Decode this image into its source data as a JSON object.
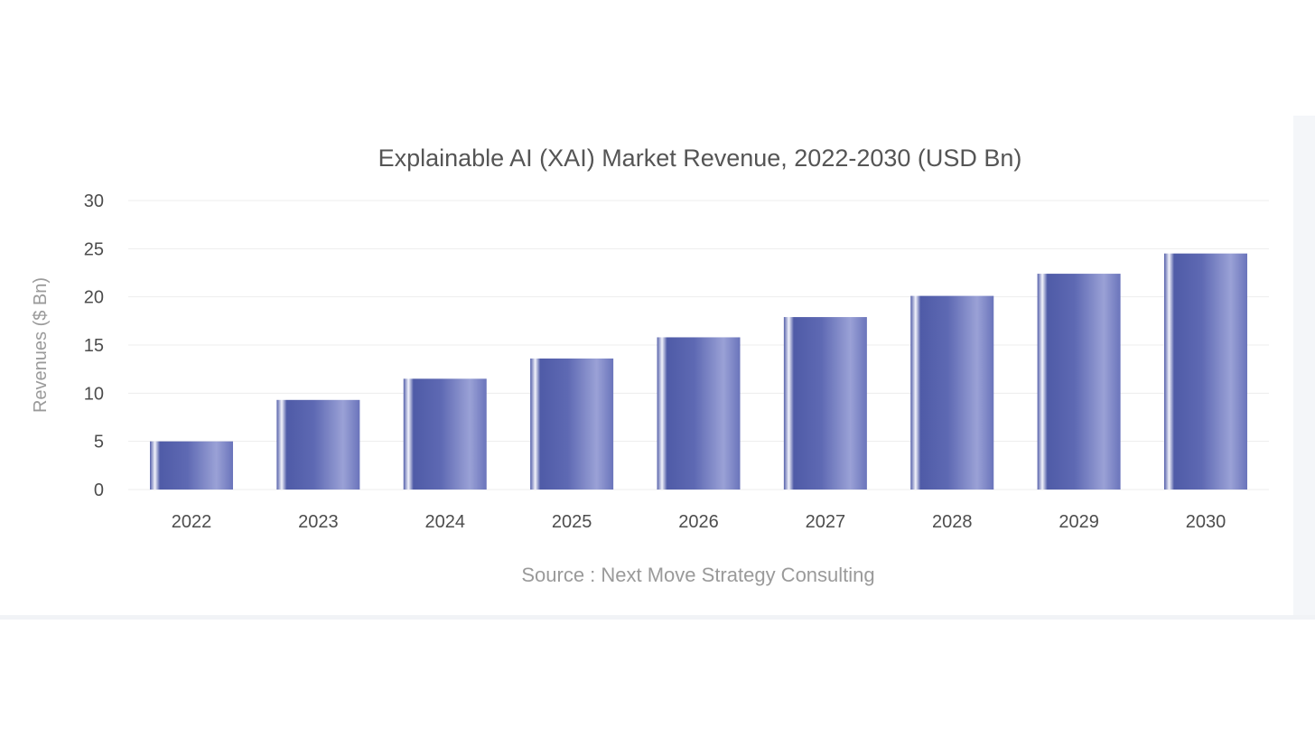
{
  "colors": {
    "bar_dark": "#4e5aa6",
    "bar_mid": "#6c76bd",
    "bar_light": "#a7aede",
    "bar_highlight": "#f2f3fb",
    "grid": "#ededed",
    "title": "#555555",
    "muted_text": "#9a9a9a"
  },
  "chart_data": {
    "type": "bar",
    "title": "Explainable AI (XAI) Market Revenue, 2022-2030 (USD Bn)",
    "xlabel": "",
    "ylabel": "Revenues ($ Bn)",
    "categories": [
      "2022",
      "2023",
      "2024",
      "2025",
      "2026",
      "2027",
      "2028",
      "2029",
      "2030"
    ],
    "values": [
      5.0,
      9.3,
      11.5,
      13.6,
      15.8,
      17.9,
      20.1,
      22.4,
      24.5
    ],
    "ylim": [
      0,
      30
    ],
    "yticks": [
      "0",
      "5",
      "10",
      "15",
      "20",
      "25",
      "30"
    ],
    "grid": true,
    "legend": "none",
    "source": "Source : Next Move Strategy Consulting"
  }
}
